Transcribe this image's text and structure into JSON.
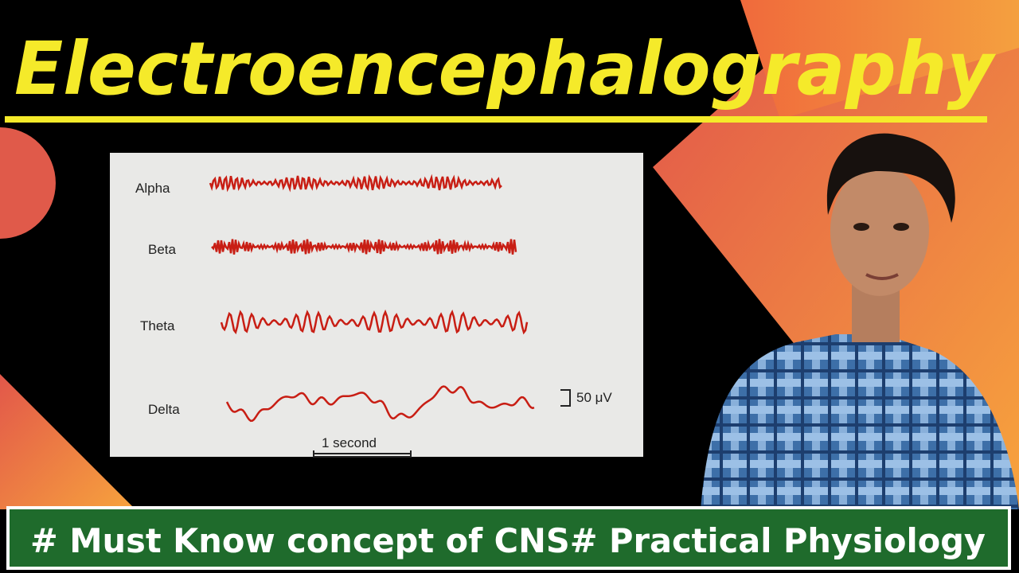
{
  "header": {
    "title": "Electroencephalography"
  },
  "figure": {
    "waves": [
      {
        "label": "Alpha"
      },
      {
        "label": "Beta"
      },
      {
        "label": "Theta"
      },
      {
        "label": "Delta"
      }
    ],
    "amplitude_scale": "50 μV",
    "time_scale": "1 second"
  },
  "banner": {
    "text": "# Must Know concept of CNS# Practical Physiology"
  }
}
